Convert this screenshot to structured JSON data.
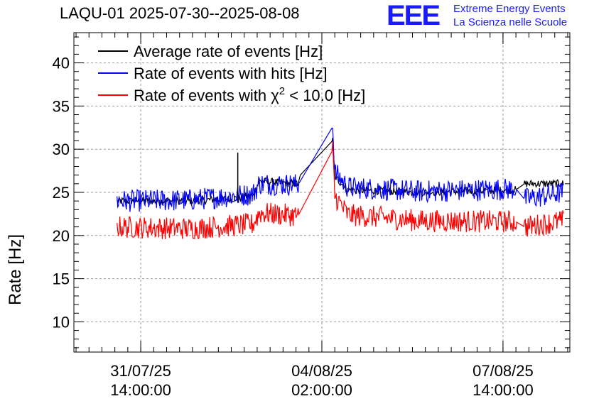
{
  "chart_data": {
    "type": "line",
    "title": "LAQU-01 2025-07-30--2025-08-08",
    "ylabel": "Rate [Hz]",
    "xlabel": "",
    "ylim": [
      6.5,
      43.5
    ],
    "yticks": [
      10,
      15,
      20,
      25,
      30,
      35,
      40
    ],
    "xtick_labels": [
      {
        "date": "31/07/25",
        "time": "14:00:00",
        "x": "2025-07-31 14:00"
      },
      {
        "date": "04/08/25",
        "time": "02:00:00",
        "x": "2025-08-04 02:00"
      },
      {
        "date": "07/08/25",
        "time": "14:00:00",
        "x": "2025-08-07 14:00"
      }
    ],
    "xlim": [
      "2025-07-30 07:00",
      "2025-08-08 21:00"
    ],
    "grid": true,
    "legend_position": "top-left",
    "series": [
      {
        "name": "Average rate of events [Hz]",
        "color": "#000000",
        "points": [
          [
            "2025-07-31 03:00",
            24.0
          ],
          [
            "2025-08-01 12:00",
            24.0
          ],
          [
            "2025-08-02 11:00",
            24.3
          ],
          [
            "2025-08-02 18:00",
            24.7
          ],
          [
            "2025-08-02 21:00",
            26.3
          ],
          [
            "2025-08-03 15:00",
            26.0
          ],
          [
            "2025-08-03 16:00",
            27.0
          ],
          [
            "2025-08-04 07:00",
            31.0
          ],
          [
            "2025-08-04 08:00",
            26.8
          ],
          [
            "2025-08-04 14:00",
            25.3
          ],
          [
            "2025-08-06 00:00",
            25.0
          ],
          [
            "2025-08-07 20:00",
            25.3
          ],
          [
            "2025-08-08 00:00",
            26.0
          ],
          [
            "2025-08-08 18:00",
            26.0
          ]
        ]
      },
      {
        "name": "Rate of events with hits [Hz]",
        "color": "#0000ff",
        "points": [
          [
            "2025-07-31 03:00",
            24.0
          ],
          [
            "2025-08-01 12:00",
            24.1
          ],
          [
            "2025-08-02 18:00",
            24.8
          ],
          [
            "2025-08-02 21:00",
            26.0
          ],
          [
            "2025-08-03 15:00",
            25.9
          ],
          [
            "2025-08-04 07:00",
            32.6
          ],
          [
            "2025-08-04 08:00",
            27.3
          ],
          [
            "2025-08-04 14:00",
            25.6
          ],
          [
            "2025-08-06 00:00",
            25.1
          ],
          [
            "2025-08-07 20:00",
            25.4
          ],
          [
            "2025-08-08 00:00",
            24.2
          ],
          [
            "2025-08-08 18:00",
            25.0
          ]
        ]
      },
      {
        "name": "Rate of events with χ² < 10.0 [Hz]",
        "color": "#ff0000",
        "points": [
          [
            "2025-07-31 03:00",
            21.0
          ],
          [
            "2025-08-01 12:00",
            20.8
          ],
          [
            "2025-08-02 18:00",
            21.3
          ],
          [
            "2025-08-02 21:00",
            22.6
          ],
          [
            "2025-08-03 15:00",
            22.3
          ],
          [
            "2025-08-04 07:00",
            29.9
          ],
          [
            "2025-08-04 08:00",
            24.6
          ],
          [
            "2025-08-04 14:00",
            22.4
          ],
          [
            "2025-08-06 00:00",
            21.7
          ],
          [
            "2025-08-07 20:00",
            21.6
          ],
          [
            "2025-08-08 00:00",
            21.0
          ],
          [
            "2025-08-08 18:00",
            21.7
          ]
        ]
      }
    ],
    "legend": [
      {
        "label_main": "Rate of events with ",
        "sym": "χ",
        "sup": "2",
        "rest": " < 10.0 [Hz]"
      }
    ]
  },
  "logo": {
    "mark": "EEE",
    "line1": "Extreme Energy Events",
    "line2": "La Scienza nelle Scuole"
  }
}
